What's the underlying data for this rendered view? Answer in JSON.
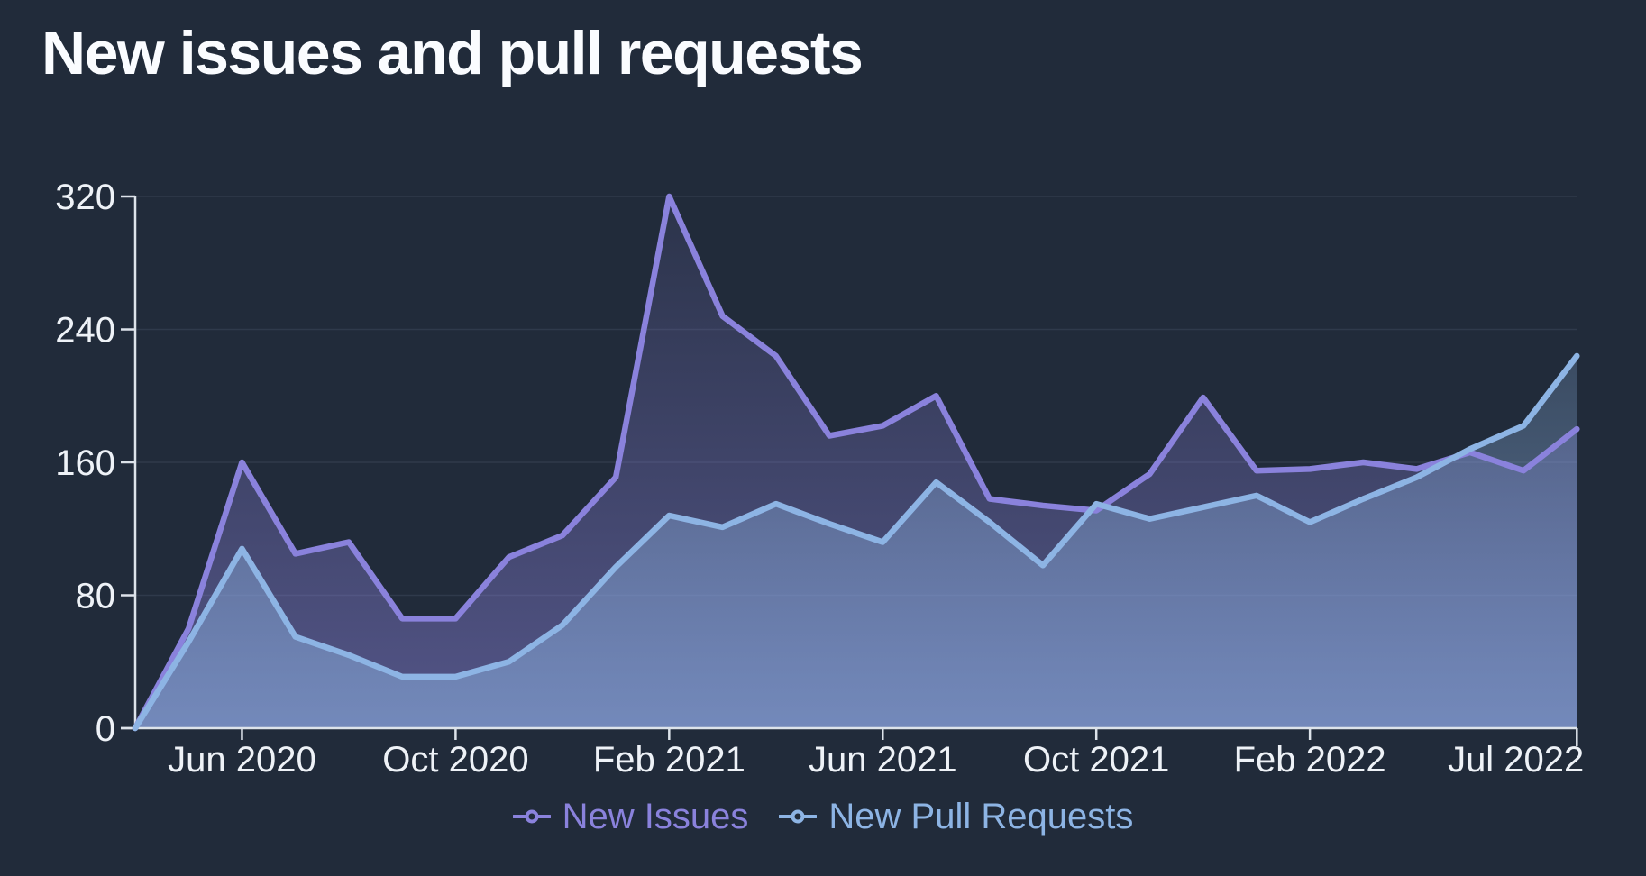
{
  "page": {
    "background": "#212b3a"
  },
  "header": {
    "title": "New issues and pull requests"
  },
  "chart_data": {
    "type": "area",
    "title": "New issues and pull requests",
    "x": [
      "Apr 2020",
      "May 2020",
      "Jun 2020",
      "Jul 2020",
      "Aug 2020",
      "Sep 2020",
      "Oct 2020",
      "Nov 2020",
      "Dec 2020",
      "Jan 2021",
      "Feb 2021",
      "Mar 2021",
      "Apr 2021",
      "May 2021",
      "Jun 2021",
      "Jul 2021",
      "Aug 2021",
      "Sep 2021",
      "Oct 2021",
      "Nov 2021",
      "Dec 2021",
      "Jan 2022",
      "Feb 2022",
      "Mar 2022",
      "Apr 2022",
      "May 2022",
      "Jun 2022",
      "Jul 2022"
    ],
    "series": [
      {
        "name": "New Issues",
        "color": "#8a82dc",
        "values": [
          0,
          60,
          160,
          105,
          112,
          66,
          66,
          103,
          116,
          151,
          320,
          248,
          224,
          176,
          182,
          200,
          138,
          134,
          131,
          153,
          199,
          155,
          156,
          160,
          156,
          166,
          155,
          180
        ]
      },
      {
        "name": "New Pull Requests",
        "color": "#8db4e4",
        "values": [
          0,
          52,
          108,
          55,
          44,
          31,
          31,
          40,
          62,
          97,
          128,
          121,
          135,
          123,
          112,
          148,
          124,
          98,
          135,
          126,
          133,
          140,
          124,
          138,
          151,
          168,
          182,
          224
        ]
      }
    ],
    "ylim": [
      0,
      320
    ],
    "y_ticks": [
      0,
      80,
      160,
      240,
      320
    ],
    "x_ticks": [
      {
        "index": 2,
        "label": "Jun 2020"
      },
      {
        "index": 6,
        "label": "Oct 2020"
      },
      {
        "index": 10,
        "label": "Feb 2021"
      },
      {
        "index": 14,
        "label": "Jun 2021"
      },
      {
        "index": 18,
        "label": "Oct 2021"
      },
      {
        "index": 22,
        "label": "Feb 2022"
      },
      {
        "index": 27,
        "label": "Jul 2022"
      }
    ],
    "grid": "horizontal",
    "legend_position": "bottom",
    "axis_color": "#dde3ea",
    "grid_color": "rgba(173,193,222,0.10)",
    "text_color": "#eef2f7"
  }
}
